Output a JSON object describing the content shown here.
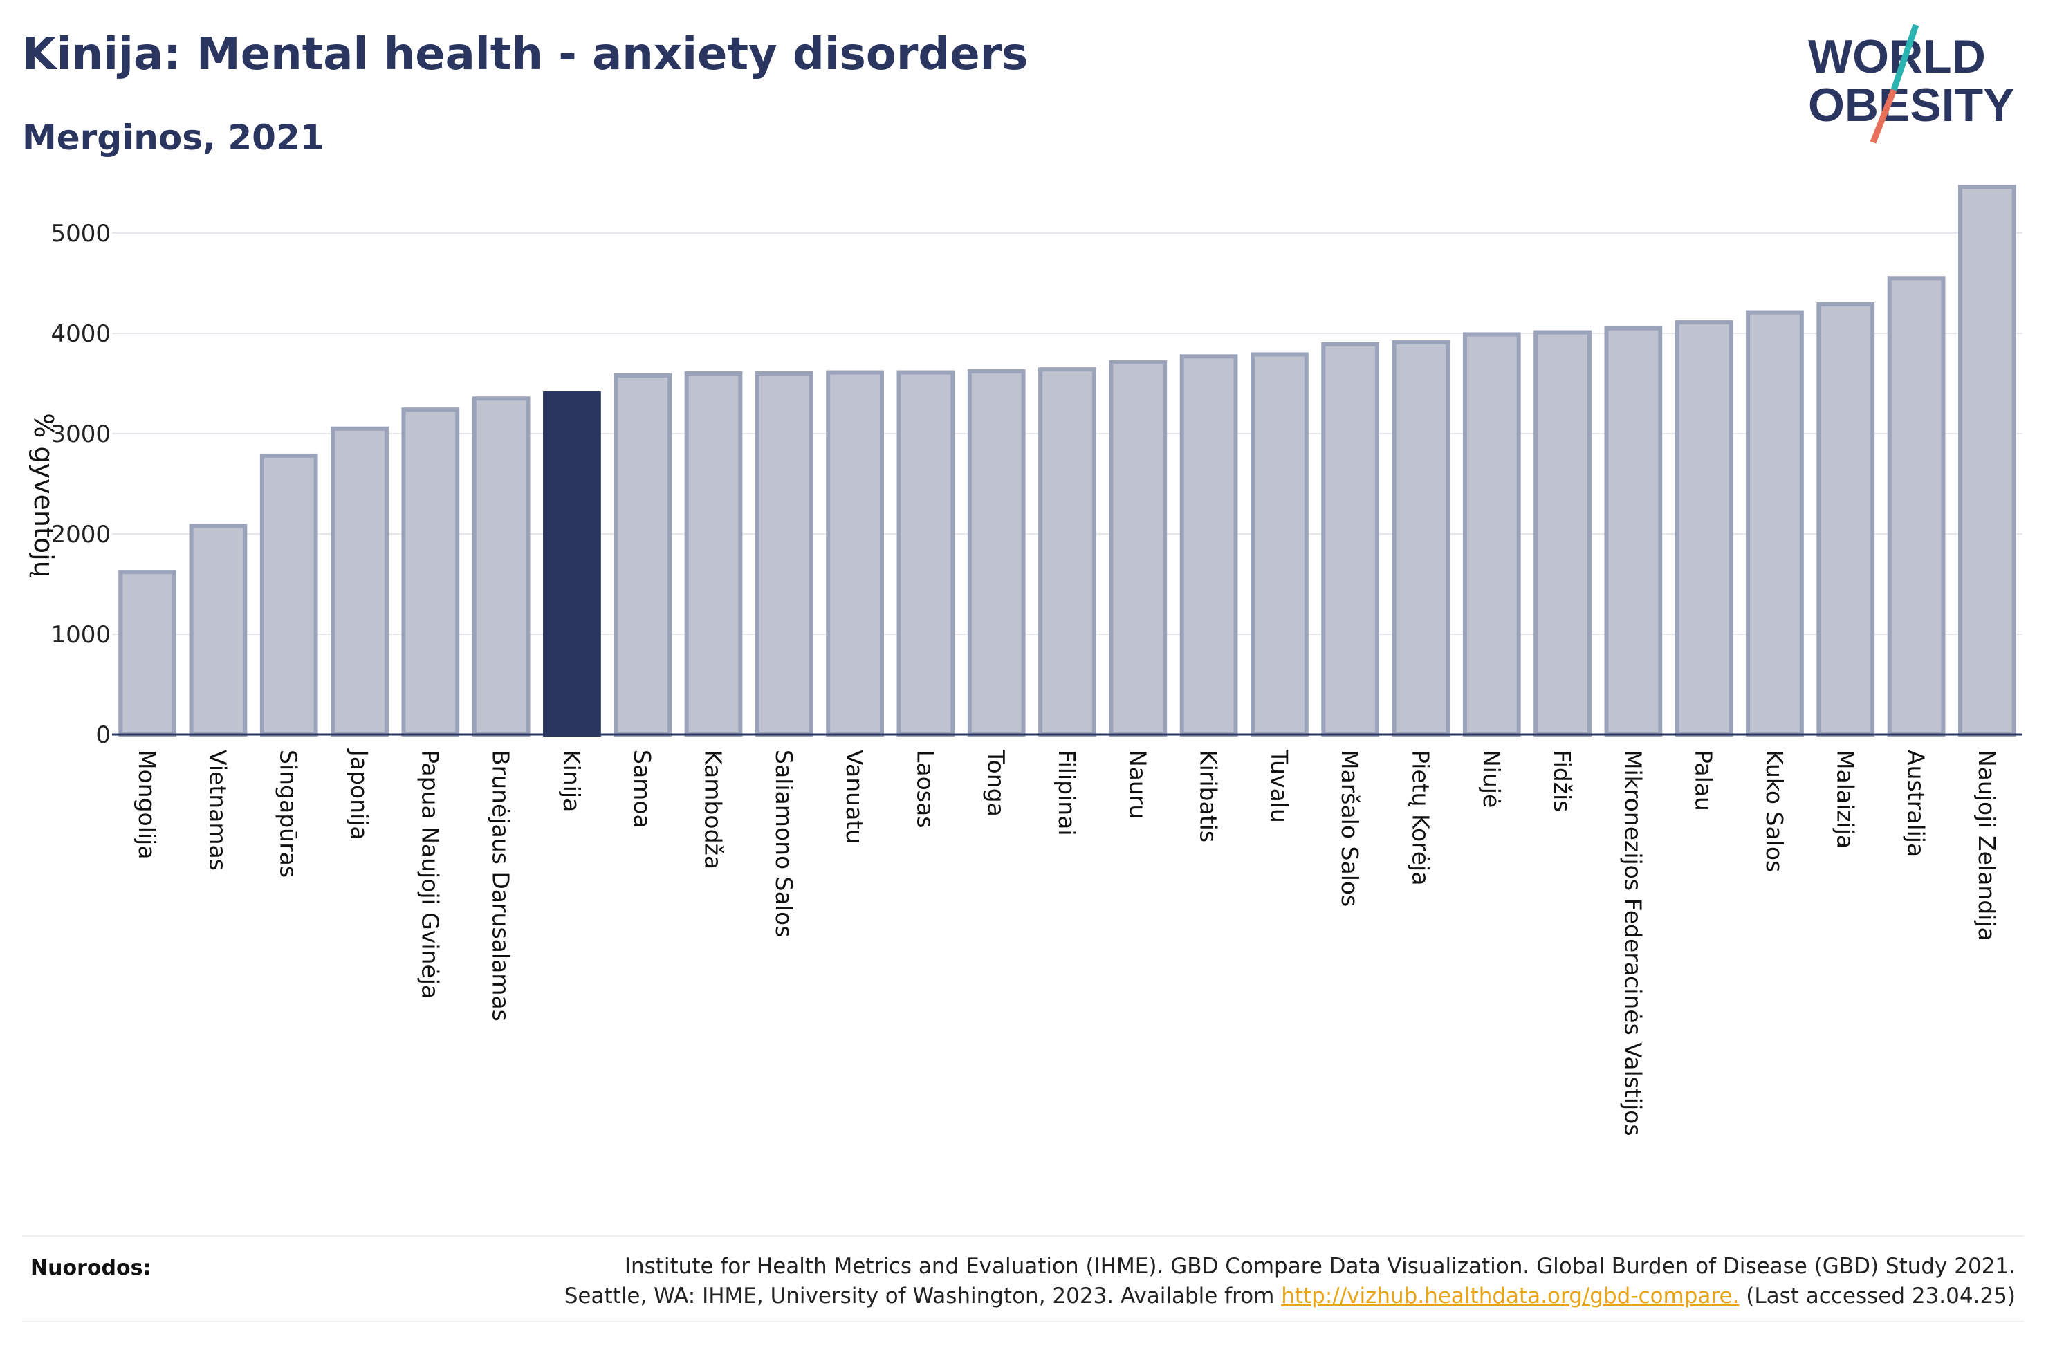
{
  "header": {
    "title": "Kinija: Mental health - anxiety disorders",
    "subtitle": "Merginos, 2021"
  },
  "logo": {
    "line1": "WORLD",
    "line2": "OBESITY",
    "colors": {
      "text": "#2a3560",
      "slash_top": "#2bb3b1",
      "slash_bottom": "#e8705a"
    }
  },
  "chart_data": {
    "type": "bar",
    "ylabel": "% gyventojų",
    "ylim": [
      0,
      5600
    ],
    "yticks": [
      0,
      1000,
      2000,
      3000,
      4000,
      5000
    ],
    "grid": true,
    "highlight": "Kinija",
    "colors": {
      "bar": "#bfc3d0",
      "bar_border": "#9ba3bb",
      "highlight": "#2a3560",
      "grid": "#e6e8ee",
      "axis": "#2a3560"
    },
    "categories": [
      "Mongolija",
      "Vietnamas",
      "Singapūras",
      "Japonija",
      "Papua Naujoji Gvinėja",
      "Brunėjaus Darusalamas",
      "Kinija",
      "Samoa",
      "Kambodža",
      "Saliamono Salos",
      "Vanuatu",
      "Laosas",
      "Tonga",
      "Filipinai",
      "Nauru",
      "Kiribatis",
      "Tuvalu",
      "Maršalo Salos",
      "Pietų Korėja",
      "Niujė",
      "Fidžis",
      "Mikronezijos Federacinės Valstijos",
      "Palau",
      "Kuko Salos",
      "Malaizija",
      "Australija",
      "Naujoji Zelandija"
    ],
    "values": [
      1620,
      2080,
      2780,
      3050,
      3240,
      3350,
      3400,
      3580,
      3600,
      3600,
      3610,
      3610,
      3620,
      3640,
      3710,
      3770,
      3790,
      3890,
      3910,
      3990,
      4010,
      4050,
      4110,
      4210,
      4290,
      4550,
      5460
    ]
  },
  "references": {
    "label": "Nuorodos:",
    "line1": "Institute for Health Metrics and Evaluation (IHME). GBD Compare Data Visualization. Global Burden of Disease (GBD) Study 2021.",
    "line2_pre": "Seattle, WA: IHME, University of Washington, 2023. Available from ",
    "link": "http://vizhub.healthdata.org/gbd-compare.",
    "line2_post": " (Last accessed 23.04.25)"
  }
}
